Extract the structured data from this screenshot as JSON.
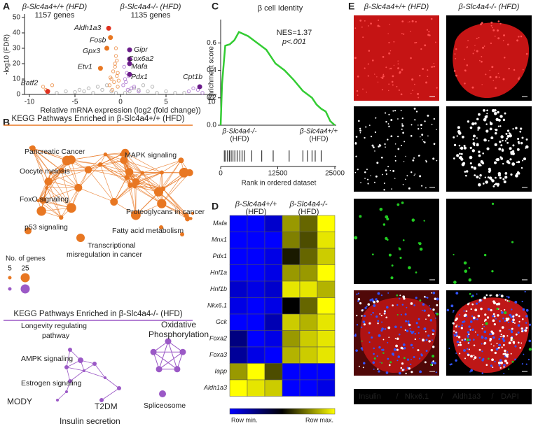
{
  "panel_letters": [
    "A",
    "B",
    "C",
    "D",
    "E"
  ],
  "chart_data": [
    {
      "type": "scatter",
      "annotations": [
        {
          "text": "β-Slc4a4+/+ (HFD)",
          "sub": "1157 genes",
          "color": "#e87722"
        },
        {
          "text": "β-Slc4a4-/- (HFD)",
          "sub": "1135 genes",
          "color": "#7b2f9e"
        }
      ],
      "x_label": "Relative mRNA expression (log2 (fold change))",
      "y_label": "-log10 (FDR)",
      "xlim": [
        -10.5,
        10.5
      ],
      "xticks": [
        -10,
        -5,
        0,
        5,
        10
      ],
      "ylim": [
        0,
        52
      ],
      "yticks": [
        0,
        10,
        20,
        30,
        40,
        50
      ],
      "points": [
        {
          "color": "#9a9a9a",
          "x": [
            -7,
            -6,
            -5,
            -4.5,
            -4,
            -3.5,
            -3,
            -2.5,
            -2,
            -1.5,
            -1,
            -0.5,
            0.5,
            1,
            1.5,
            2,
            2.5,
            3,
            3.5,
            4,
            5,
            6,
            -8,
            7
          ],
          "y": [
            1,
            2,
            1.5,
            3,
            2,
            4,
            1,
            5,
            3,
            6,
            2,
            1,
            1,
            2,
            4,
            3,
            6,
            2,
            5,
            1,
            2,
            1,
            1,
            1
          ]
        },
        {
          "color": "#e87722",
          "x": [
            -1,
            -0.8,
            -0.6,
            -0.5,
            -0.4,
            -0.7,
            -1.2,
            -0.3,
            -0.9,
            -0.5,
            -0.6,
            -0.4,
            -0.3,
            -0.2,
            -1.1,
            -8.5,
            -7.5,
            -8.2
          ],
          "y": [
            10,
            15,
            20,
            25,
            12,
            8,
            6,
            5,
            3,
            30,
            18,
            22,
            14,
            9,
            11,
            5,
            6,
            3
          ]
        },
        {
          "color": "#9b59c6",
          "x": [
            0.3,
            0.5,
            0.7,
            0.4,
            0.6,
            1.2,
            0.9,
            0.8,
            1.5,
            2,
            7.5,
            8.5,
            8,
            9
          ],
          "y": [
            6,
            10,
            14,
            18,
            8,
            4,
            12,
            3,
            5,
            2,
            2,
            3,
            4,
            1
          ]
        }
      ],
      "genes": {
        "names": [
          "Aldh1a3",
          "Fosb",
          "Gpx3",
          "Batf2",
          "Etv1",
          "Gipr",
          "Cox6a2",
          "Mafa",
          "Pdx1",
          "Cpt1b"
        ],
        "x": [
          -1.3,
          -1.1,
          -1.5,
          -8,
          -2.2,
          1,
          1,
          1,
          1,
          8.7
        ],
        "y": [
          43,
          37,
          30,
          2,
          17,
          29,
          23,
          20,
          13,
          5
        ],
        "colors": [
          "#e0301e",
          "#e87722",
          "#e87722",
          "#e0301e",
          "#e87722",
          "#6a1b8a",
          "#6a1b8a",
          "#6a1b8a",
          "#6a1b8a",
          "#6a1b8a"
        ]
      }
    },
    {
      "type": "line",
      "title": "β cell Identity",
      "annotations": [
        "NES=1.37",
        "p<.001"
      ],
      "y_label": "Enrichment score",
      "x_label": "Rank in ordered dataset",
      "group_labels": [
        {
          "lines": [
            "β-Slc4a4-/-",
            "(HFD)"
          ],
          "color": "#7b2f9e"
        },
        {
          "lines": [
            "β-Slc4a4+/+",
            "(HFD)"
          ],
          "color": "#e87722"
        }
      ],
      "color": "#33cc33",
      "x": [
        0,
        300,
        1000,
        2000,
        3000,
        4000,
        6000,
        8000,
        10000,
        12000,
        14000,
        16000,
        18000,
        20000,
        21000,
        22000,
        23000,
        24000,
        25000
      ],
      "values": [
        0,
        0.3,
        0.58,
        0.59,
        0.62,
        0.68,
        0.65,
        0.6,
        0.55,
        0.45,
        0.4,
        0.33,
        0.25,
        0.2,
        0.15,
        0.12,
        0.1,
        0.03,
        0
      ],
      "hits": [
        800,
        1100,
        1500,
        1900,
        2300,
        2700,
        3100,
        3600,
        4200,
        4700,
        5200,
        6800,
        9000,
        11500,
        15000,
        18000,
        19000,
        20000,
        20700,
        22000
      ],
      "xlim": [
        0,
        25000
      ],
      "xticks": [
        0,
        12500,
        25000
      ],
      "ylim": [
        0,
        0.76
      ],
      "yticks": [
        {
          "value": 0,
          "label": "0.0"
        },
        {
          "value": 0.2,
          "label": "0.2"
        },
        {
          "value": 0.4,
          "label": "0.4"
        },
        {
          "value": 0.6,
          "label": "0.6"
        }
      ]
    },
    {
      "type": "heatmap",
      "groups": [
        {
          "lines": [
            "β-Slc4a4+/+",
            "(HFD)"
          ],
          "color": "#e87722"
        },
        {
          "lines": [
            "β-Slc4a4-/-",
            "(HFD)"
          ],
          "color": "#7b2f9e"
        }
      ],
      "rows": [
        "Mafa",
        "Mnx1",
        "Pdx1",
        "Hnf1a",
        "Hnf1b",
        "Nkx6.1",
        "Gck",
        "Foxa2",
        "Foxa3",
        "Iapp",
        "Aldh1a3"
      ],
      "values": [
        [
          -1,
          -1,
          -0.8,
          0.6,
          0.4,
          1
        ],
        [
          -1,
          -1,
          -1,
          0.5,
          0.3,
          0.9
        ],
        [
          -1,
          -1,
          -0.9,
          0.1,
          0.4,
          0.8
        ],
        [
          -1,
          -1,
          -0.9,
          0.6,
          0.6,
          1
        ],
        [
          -0.8,
          -0.9,
          -0.8,
          0.9,
          0.9,
          0.7
        ],
        [
          -0.9,
          -1,
          -0.9,
          0,
          0.4,
          1
        ],
        [
          -1,
          -1,
          -0.7,
          0.8,
          0.7,
          0.9
        ],
        [
          -0.5,
          -1,
          -0.9,
          0.6,
          0.8,
          0.9
        ],
        [
          -0.6,
          -0.9,
          -1,
          0.7,
          0.8,
          0.9
        ],
        [
          0.6,
          1,
          0.3,
          -1,
          -1,
          -1
        ],
        [
          1,
          0.9,
          0.8,
          -1,
          -1,
          -0.9
        ]
      ],
      "colors": [
        "#0000ff",
        "#000000",
        "#ffff00"
      ],
      "legend": [
        "Row min.",
        "Row max."
      ]
    }
  ],
  "panel_b": {
    "header_1": "KEGG Pathways Enriched in β-Slc4a4+/+ (HFD)",
    "color_1": "#e87722",
    "labels_1": [
      [
        "Pancreatic Cancer"
      ],
      [
        "MAPK signaling"
      ],
      [
        "Oocyte meiosis"
      ],
      [
        "FoxO signaling"
      ],
      [
        "Proteoglycans in cancer"
      ],
      [
        "p53 signaling"
      ],
      [
        "Fatty acid metabolism"
      ],
      [
        "Transcriptional",
        "misregulation in cancer"
      ]
    ],
    "legend_title": "No. of genes",
    "legend_sizes": [
      5,
      25
    ],
    "header_2": "KEGG Pathways Enriched in β-Slc4a4-/- (HFD)",
    "color_2": "#9b59c6",
    "labels_2": [
      [
        "Longevity regulating",
        "pathway"
      ],
      [
        "Oxidative",
        "Phosphorylation"
      ],
      [
        "AMPK signaling"
      ],
      [
        "Estrogen signaling"
      ],
      [
        "Spliceosome"
      ],
      [
        "MODY"
      ],
      [
        "T2DM"
      ],
      [
        "Insulin secretion"
      ]
    ]
  },
  "panel_e": {
    "columns": [
      {
        "text": "β-Slc4a4+/+ (HFD)",
        "color": "#e87722"
      },
      {
        "text": "β-Slc4a4-/- (HFD)",
        "color": "#9b59c6"
      }
    ],
    "legend": [
      {
        "text": "Insulin",
        "color": "#ff2020"
      },
      {
        "text": "/",
        "color": "#ffffff"
      },
      {
        "text": "Nkx6.1",
        "color": "#ffffff"
      },
      {
        "text": "/",
        "color": "#ffffff"
      },
      {
        "text": "Aldh1a3",
        "color": "#22dd22"
      },
      {
        "text": "/",
        "color": "#ffffff"
      },
      {
        "text": "DAPI",
        "color": "#4477ff"
      }
    ]
  }
}
